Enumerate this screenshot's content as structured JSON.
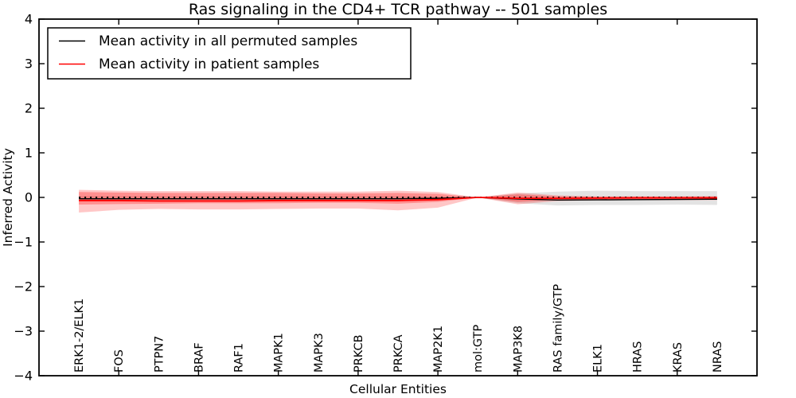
{
  "figure": {
    "background": "#ffffff",
    "frame_color": "#000000"
  },
  "chart_data": {
    "type": "line",
    "title": "Ras signaling in the CD4+ TCR pathway -- 501 samples",
    "xlabel": "Cellular Entities",
    "ylabel": "Inferred Activity",
    "ylim": [
      -4,
      4
    ],
    "xlim": [
      0,
      18
    ],
    "grid": false,
    "ytick_values": [
      4,
      3,
      2,
      1,
      0,
      -1,
      -2,
      -3,
      -4
    ],
    "ytick_labels": [
      "4",
      "3",
      "2",
      "1",
      "0",
      "−1",
      "−2",
      "−3",
      "−4"
    ],
    "xtick_mark_values": [
      2,
      4,
      6,
      8,
      10,
      12,
      14,
      16
    ],
    "categories": [
      "ERK1-2/ELK1",
      "FOS",
      "PTPN7",
      "BRAF",
      "RAF1",
      "MAPK1",
      "MAPK3",
      "PRKCB",
      "PRKCA",
      "MAP2K1",
      "mol:GTP",
      "MAP3K8",
      "RAS family/GTP",
      "ELK1",
      "HRAS",
      "KRAS",
      "NRAS"
    ],
    "zero_line": {
      "y": 0,
      "color": "#000000",
      "style": "dotted"
    },
    "bands": [
      {
        "name": "permuted-samples-std-band",
        "color": "rgba(0,0,0,0.11)",
        "upper": [
          0.03,
          0.03,
          0.03,
          0.03,
          0.03,
          0.03,
          0.03,
          0.03,
          0.03,
          0.02,
          0.0,
          0.09,
          0.13,
          0.15,
          0.14,
          0.14,
          0.14
        ],
        "lower": [
          -0.08,
          -0.08,
          -0.08,
          -0.08,
          -0.08,
          -0.08,
          -0.08,
          -0.08,
          -0.08,
          -0.06,
          0.0,
          -0.13,
          -0.18,
          -0.17,
          -0.17,
          -0.16,
          -0.17
        ]
      },
      {
        "name": "patient-samples-outer-band",
        "color": "rgba(255,0,0,0.22)",
        "upper": [
          0.17,
          0.15,
          0.14,
          0.14,
          0.14,
          0.13,
          0.13,
          0.13,
          0.15,
          0.12,
          0.0,
          0.11,
          0.045,
          0.025,
          0.025,
          0.025,
          0.03
        ],
        "lower": [
          -0.34,
          -0.28,
          -0.26,
          -0.27,
          -0.27,
          -0.26,
          -0.25,
          -0.25,
          -0.29,
          -0.23,
          0.0,
          -0.155,
          -0.08,
          -0.065,
          -0.06,
          -0.06,
          -0.06
        ]
      },
      {
        "name": "patient-samples-inner-band",
        "color": "rgba(255,0,0,0.28)",
        "upper": [
          0.12,
          0.11,
          0.1,
          0.1,
          0.1,
          0.1,
          0.09,
          0.09,
          0.1,
          0.08,
          0.0,
          0.07,
          0.025,
          0.015,
          0.015,
          0.015,
          0.02
        ],
        "lower": [
          -0.16,
          -0.15,
          -0.14,
          -0.13,
          -0.13,
          -0.13,
          -0.12,
          -0.12,
          -0.14,
          -0.1,
          0.0,
          -0.1,
          -0.055,
          -0.05,
          -0.045,
          -0.045,
          -0.05
        ]
      }
    ],
    "series": [
      {
        "name": "Mean activity in all permuted samples",
        "color": "#000000",
        "width": 1.4,
        "values": [
          -0.03,
          -0.03,
          -0.03,
          -0.03,
          -0.03,
          -0.03,
          -0.03,
          -0.03,
          -0.03,
          -0.02,
          0.0,
          -0.035,
          -0.06,
          -0.055,
          -0.05,
          -0.045,
          -0.04
        ]
      },
      {
        "name": "Mean activity in patient samples",
        "color": "#ff0000",
        "width": 1.8,
        "values": [
          -0.07,
          -0.07,
          -0.08,
          -0.08,
          -0.08,
          -0.07,
          -0.07,
          -0.07,
          -0.07,
          -0.05,
          0.0,
          -0.02,
          -0.02,
          -0.015,
          -0.01,
          -0.01,
          -0.01
        ]
      }
    ],
    "legend": {
      "position": "upper left",
      "items": [
        {
          "label": "Mean activity in all permuted samples",
          "color": "#000000"
        },
        {
          "label": "Mean activity in patient samples",
          "color": "#ff0000"
        }
      ]
    }
  }
}
